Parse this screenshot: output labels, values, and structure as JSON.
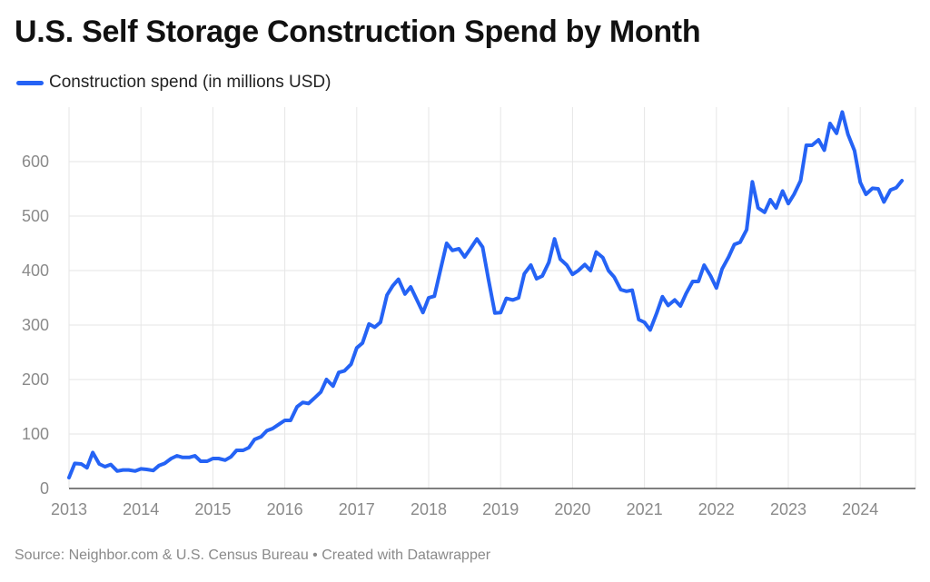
{
  "header": {
    "title": "U.S. Self Storage Construction Spend by Month"
  },
  "footer": {
    "source": "Source: Neighbor.com & U.S. Census Bureau • Created with Datawrapper"
  },
  "colors": {
    "line": "#2563f5",
    "grid": "#e6e6e6",
    "tick": "#8a8a8a"
  },
  "chart_data": {
    "type": "line",
    "title": "U.S. Self Storage Construction Spend by Month",
    "xlabel": "",
    "ylabel": "",
    "xlim": [
      2013,
      2024.67
    ],
    "ylim": [
      0,
      690
    ],
    "y_ticks": [
      0,
      100,
      200,
      300,
      400,
      500,
      600
    ],
    "x_ticks": [
      2013,
      2014,
      2015,
      2016,
      2017,
      2018,
      2019,
      2020,
      2021,
      2022,
      2023,
      2024
    ],
    "grid": true,
    "legend": "top-left",
    "series": [
      {
        "name": "Construction spend (in millions USD)",
        "points": [
          [
            2013.0,
            20
          ],
          [
            2013.08,
            46
          ],
          [
            2013.17,
            45
          ],
          [
            2013.25,
            38
          ],
          [
            2013.33,
            66
          ],
          [
            2013.42,
            45
          ],
          [
            2013.5,
            40
          ],
          [
            2013.58,
            44
          ],
          [
            2013.67,
            32
          ],
          [
            2013.75,
            34
          ],
          [
            2013.83,
            34
          ],
          [
            2013.92,
            32
          ],
          [
            2014.0,
            36
          ],
          [
            2014.08,
            35
          ],
          [
            2014.17,
            33
          ],
          [
            2014.25,
            42
          ],
          [
            2014.33,
            46
          ],
          [
            2014.42,
            55
          ],
          [
            2014.5,
            60
          ],
          [
            2014.58,
            57
          ],
          [
            2014.67,
            57
          ],
          [
            2014.75,
            60
          ],
          [
            2014.83,
            50
          ],
          [
            2014.92,
            50
          ],
          [
            2015.0,
            55
          ],
          [
            2015.08,
            55
          ],
          [
            2015.17,
            52
          ],
          [
            2015.25,
            58
          ],
          [
            2015.33,
            70
          ],
          [
            2015.42,
            70
          ],
          [
            2015.5,
            75
          ],
          [
            2015.58,
            90
          ],
          [
            2015.67,
            95
          ],
          [
            2015.75,
            106
          ],
          [
            2015.83,
            110
          ],
          [
            2015.92,
            118
          ],
          [
            2016.0,
            125
          ],
          [
            2016.08,
            125
          ],
          [
            2016.17,
            150
          ],
          [
            2016.25,
            158
          ],
          [
            2016.33,
            156
          ],
          [
            2016.42,
            167
          ],
          [
            2016.5,
            177
          ],
          [
            2016.58,
            200
          ],
          [
            2016.67,
            188
          ],
          [
            2016.75,
            213
          ],
          [
            2016.83,
            216
          ],
          [
            2016.92,
            228
          ],
          [
            2017.0,
            258
          ],
          [
            2017.08,
            267
          ],
          [
            2017.17,
            302
          ],
          [
            2017.25,
            296
          ],
          [
            2017.33,
            305
          ],
          [
            2017.42,
            355
          ],
          [
            2017.5,
            372
          ],
          [
            2017.58,
            384
          ],
          [
            2017.67,
            357
          ],
          [
            2017.75,
            370
          ],
          [
            2017.83,
            348
          ],
          [
            2017.92,
            323
          ],
          [
            2018.0,
            350
          ],
          [
            2018.08,
            353
          ],
          [
            2018.17,
            405
          ],
          [
            2018.25,
            450
          ],
          [
            2018.33,
            437
          ],
          [
            2018.42,
            440
          ],
          [
            2018.5,
            425
          ],
          [
            2018.58,
            440
          ],
          [
            2018.67,
            458
          ],
          [
            2018.75,
            443
          ],
          [
            2018.83,
            385
          ],
          [
            2018.92,
            322
          ],
          [
            2019.0,
            323
          ],
          [
            2019.08,
            349
          ],
          [
            2019.17,
            346
          ],
          [
            2019.25,
            350
          ],
          [
            2019.33,
            394
          ],
          [
            2019.42,
            410
          ],
          [
            2019.5,
            385
          ],
          [
            2019.58,
            390
          ],
          [
            2019.67,
            415
          ],
          [
            2019.75,
            458
          ],
          [
            2019.83,
            421
          ],
          [
            2019.92,
            410
          ],
          [
            2020.0,
            393
          ],
          [
            2020.08,
            400
          ],
          [
            2020.17,
            411
          ],
          [
            2020.25,
            400
          ],
          [
            2020.33,
            434
          ],
          [
            2020.42,
            424
          ],
          [
            2020.5,
            400
          ],
          [
            2020.58,
            388
          ],
          [
            2020.67,
            365
          ],
          [
            2020.75,
            362
          ],
          [
            2020.83,
            364
          ],
          [
            2020.92,
            310
          ],
          [
            2021.0,
            305
          ],
          [
            2021.08,
            291
          ],
          [
            2021.17,
            322
          ],
          [
            2021.25,
            352
          ],
          [
            2021.33,
            336
          ],
          [
            2021.42,
            346
          ],
          [
            2021.5,
            335
          ],
          [
            2021.58,
            358
          ],
          [
            2021.67,
            380
          ],
          [
            2021.75,
            380
          ],
          [
            2021.83,
            410
          ],
          [
            2021.92,
            390
          ],
          [
            2022.0,
            368
          ],
          [
            2022.08,
            403
          ],
          [
            2022.17,
            425
          ],
          [
            2022.25,
            448
          ],
          [
            2022.33,
            452
          ],
          [
            2022.42,
            475
          ],
          [
            2022.5,
            563
          ],
          [
            2022.58,
            515
          ],
          [
            2022.67,
            507
          ],
          [
            2022.75,
            530
          ],
          [
            2022.83,
            515
          ],
          [
            2022.92,
            546
          ],
          [
            2023.0,
            523
          ],
          [
            2023.08,
            540
          ],
          [
            2023.17,
            565
          ],
          [
            2023.25,
            630
          ],
          [
            2023.33,
            630
          ],
          [
            2023.42,
            640
          ],
          [
            2023.5,
            621
          ],
          [
            2023.58,
            670
          ],
          [
            2023.67,
            652
          ],
          [
            2023.75,
            691
          ],
          [
            2023.83,
            650
          ],
          [
            2023.92,
            620
          ],
          [
            2024.0,
            562
          ],
          [
            2024.08,
            540
          ],
          [
            2024.17,
            551
          ],
          [
            2024.25,
            550
          ],
          [
            2024.33,
            526
          ],
          [
            2024.42,
            548
          ],
          [
            2024.5,
            552
          ],
          [
            2024.58,
            565
          ]
        ]
      }
    ]
  }
}
